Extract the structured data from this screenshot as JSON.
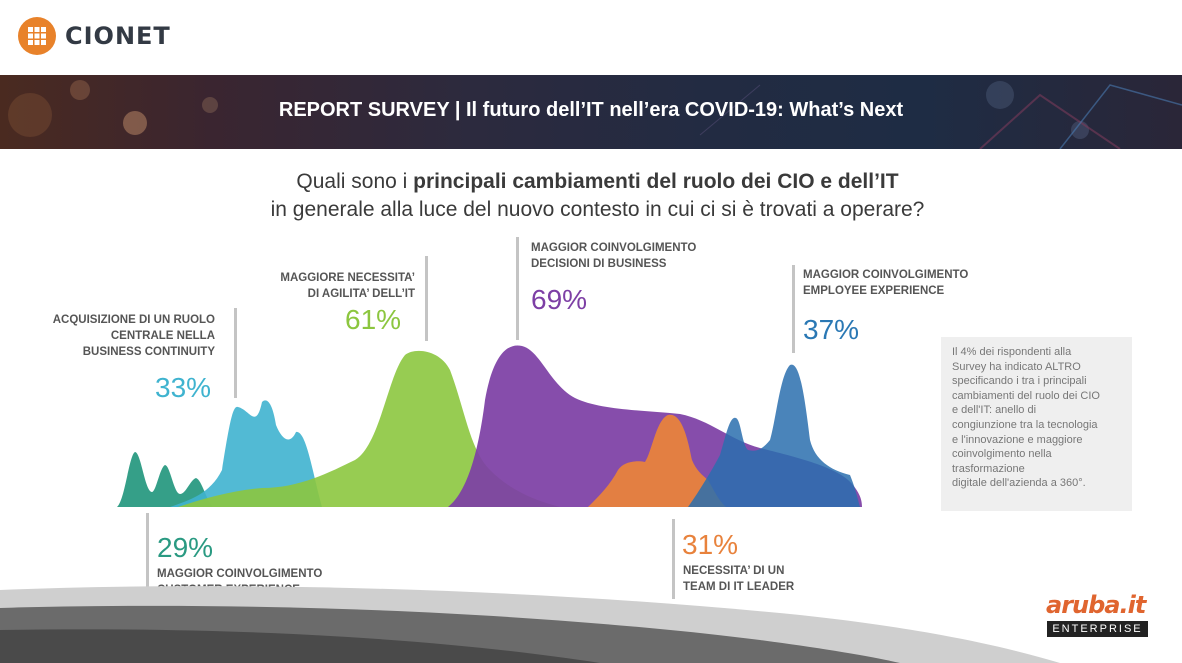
{
  "header": {
    "brand": "CIONET"
  },
  "banner": {
    "title": "REPORT SURVEY  | Il futuro dell’IT nell’era COVID-19: What’s Next"
  },
  "question": {
    "line1_prefix": "Quali sono i ",
    "line1_bold": "principali cambiamenti del ruolo dei CIO e dell’IT",
    "line2": "in generale alla luce del nuovo contesto in cui ci si è trovati a operare?"
  },
  "items": [
    {
      "label_lines": [
        "ACQUISIZIONE DI UN RUOLO",
        "CENTRALE NELLA",
        "BUSINESS CONTINUITY"
      ],
      "value": "33%",
      "color": "#3fb3cf"
    },
    {
      "label_lines": [
        "MAGGIORE NECESSITA’",
        "DI AGILITA’ DELL’IT"
      ],
      "value": "61%",
      "color": "#8cc63f"
    },
    {
      "label_lines": [
        "MAGGIOR COINVOLGIMENTO",
        "DECISIONI DI BUSINESS"
      ],
      "value": "69%",
      "color": "#7d3fa5"
    },
    {
      "label_lines": [
        "MAGGIOR COINVOLGIMENTO",
        "EMPLOYEE EXPERIENCE"
      ],
      "value": "37%",
      "color": "#2a78b4"
    },
    {
      "label_lines": [
        "MAGGIOR COINVOLGIMENTO",
        "CUSTOMER EXPERIENCE"
      ],
      "value": "29%",
      "color": "#2a9a82"
    },
    {
      "label_lines": [
        "NECESSITA’ DI UN",
        "TEAM DI IT LEADER"
      ],
      "value": "31%",
      "color": "#e8823c"
    }
  ],
  "note": {
    "lines": [
      "Il 4% dei rispondenti alla",
      "Survey ha indicato ALTRO",
      "specificando i tra i principali",
      "cambiamenti del ruolo dei CIO",
      "e dell'IT: anello di",
      "congiunzione tra la tecnologia",
      "e l'innovazione e maggiore",
      "coinvolgimento nella",
      "trasformazione",
      "digitale dell'azienda a 360°."
    ]
  },
  "footer": {
    "brand_word": "aruba.it",
    "brand_sub": "ENTERPRISE"
  }
}
